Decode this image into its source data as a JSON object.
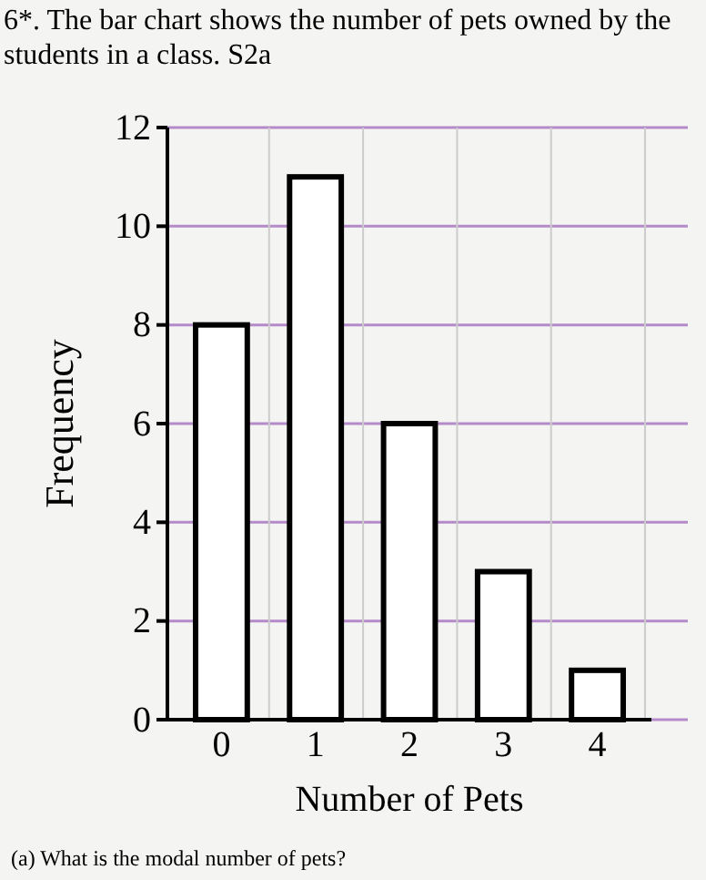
{
  "chart_data": {
    "type": "bar",
    "title": "6*. The bar chart shows the number of pets owned by the students in a class. S2a",
    "xlabel": "Number of Pets",
    "ylabel": "Frequency",
    "categories": [
      "0",
      "1",
      "2",
      "3",
      "4"
    ],
    "values": [
      8,
      11,
      6,
      3,
      1
    ],
    "color": "#ffffff",
    "ylim": [
      0,
      12
    ],
    "yticks": [
      0,
      2,
      4,
      6,
      8,
      10,
      12
    ],
    "grid": true,
    "annotations": [
      "(a) What is the modal number of pets?"
    ]
  }
}
